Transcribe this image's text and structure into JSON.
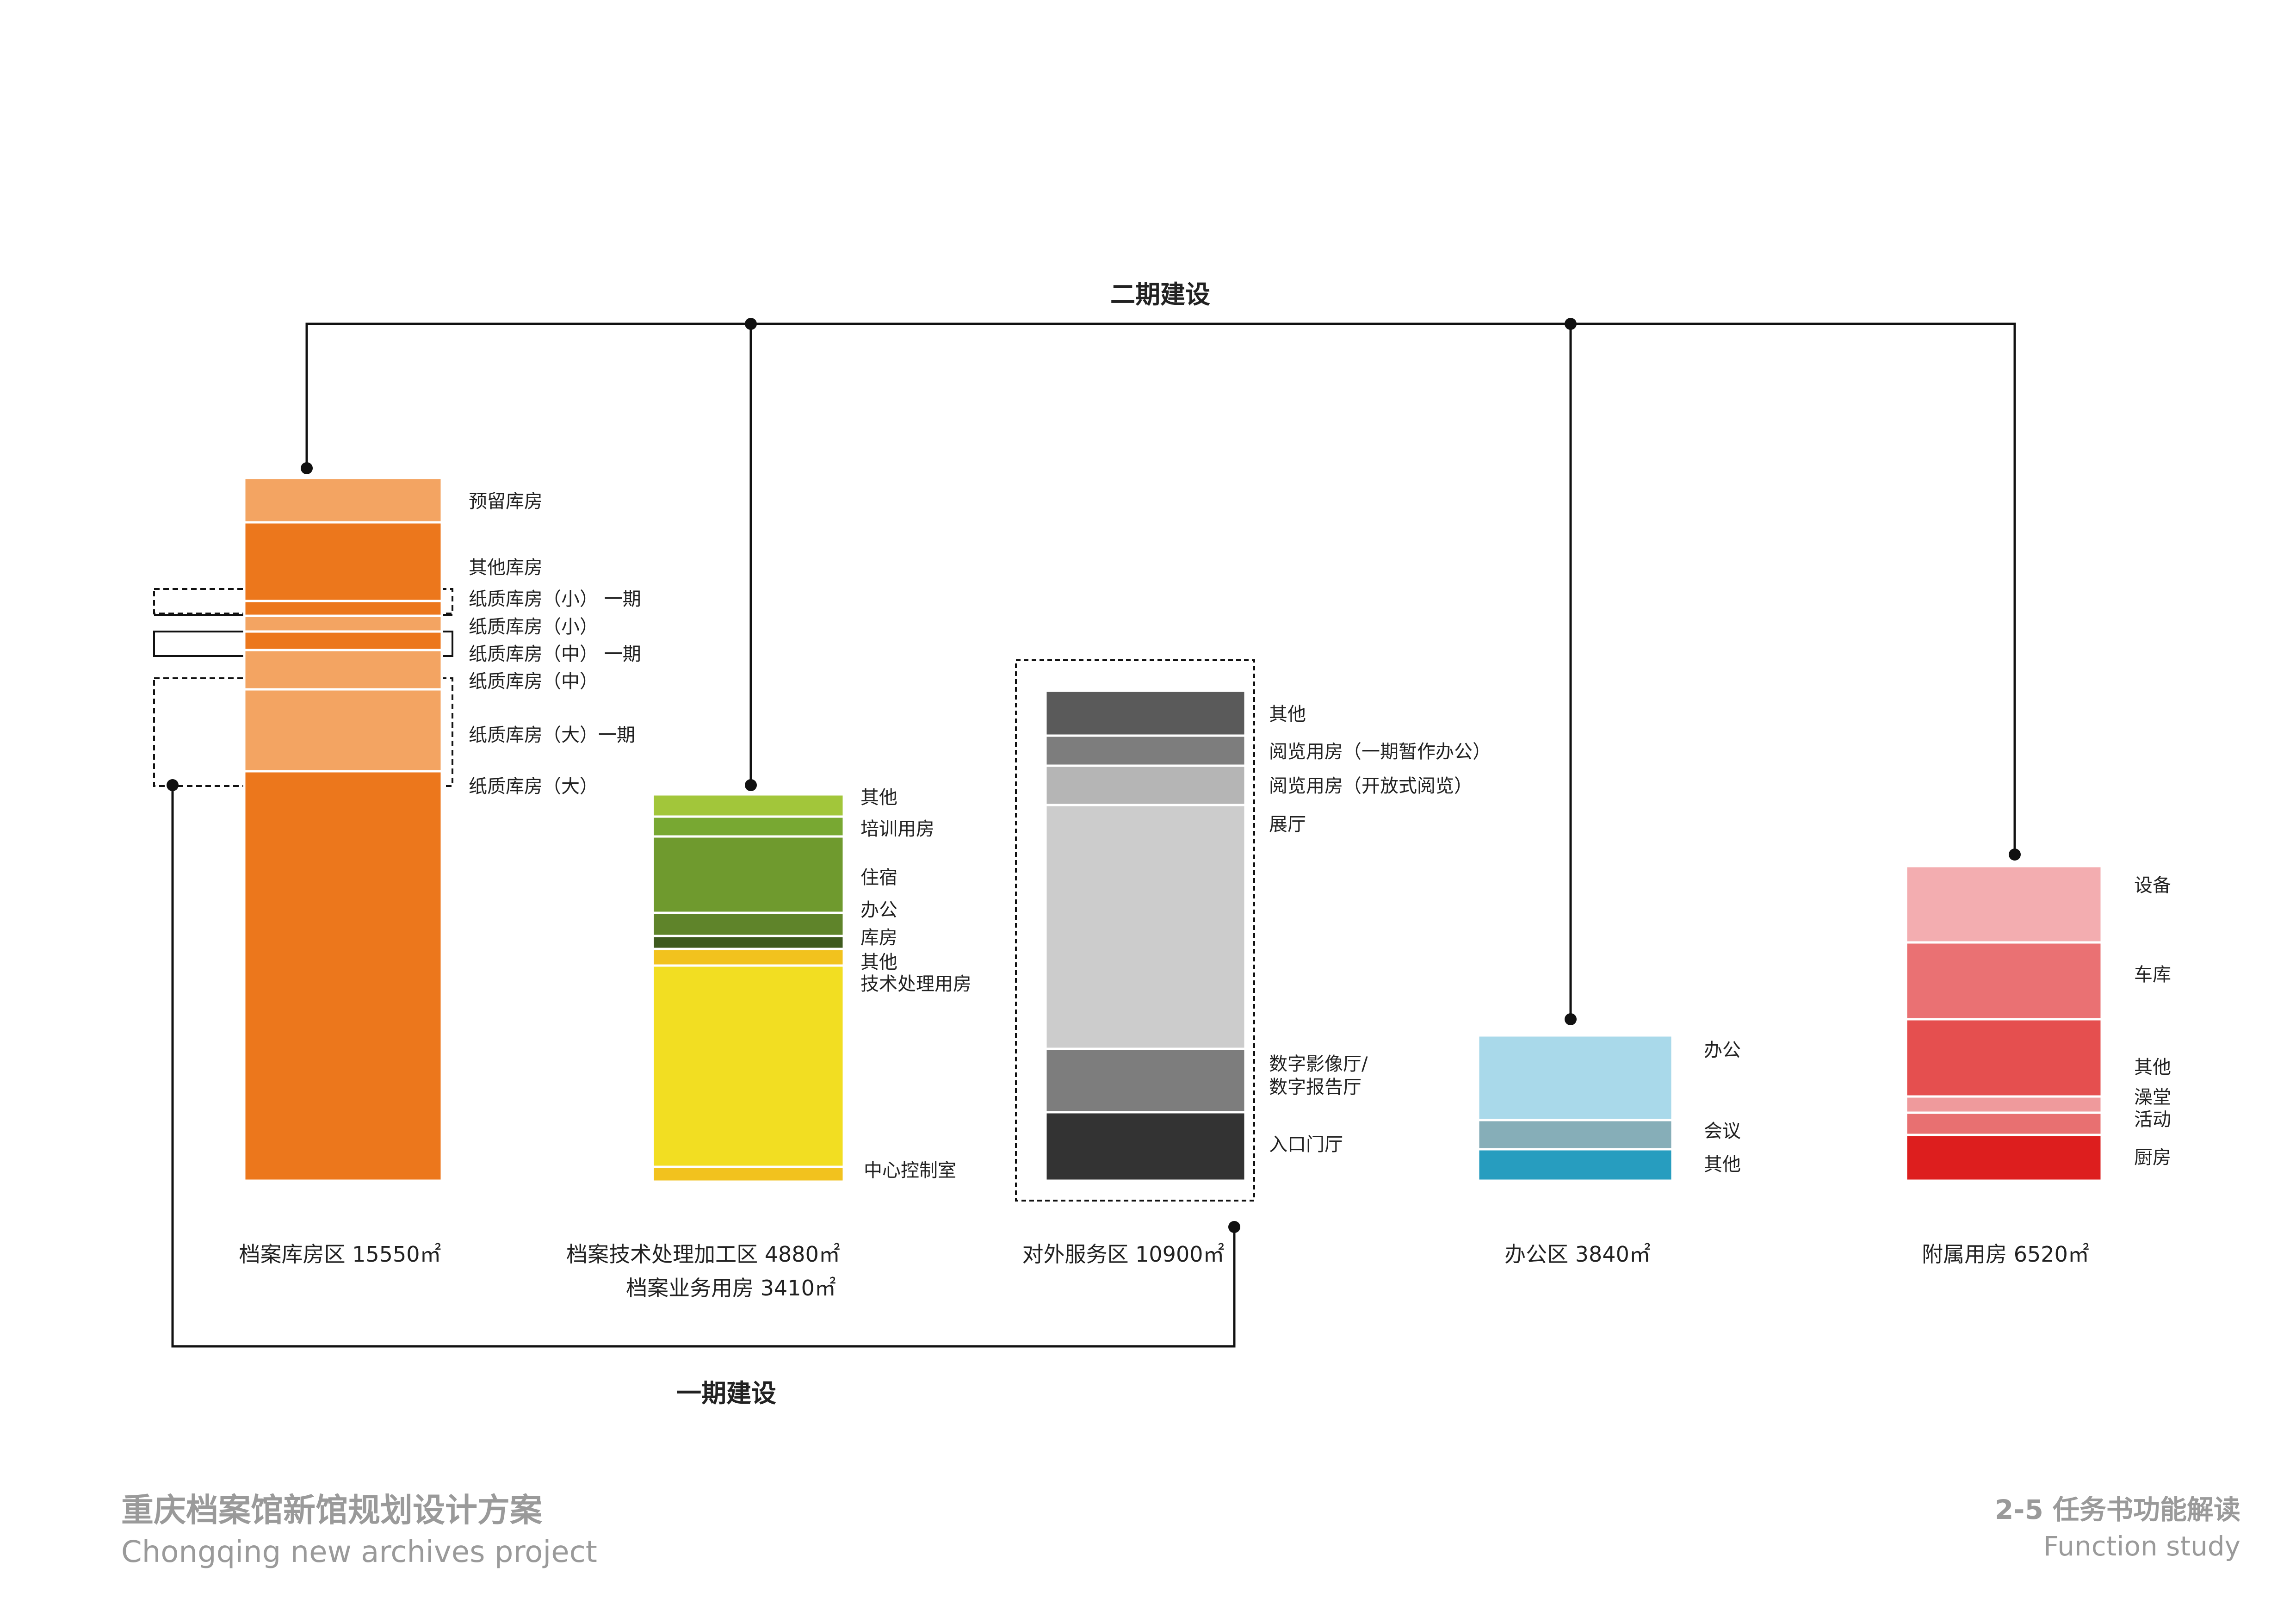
{
  "phase2_label": "二期建设",
  "phase1_label": "一期建设",
  "footer": {
    "project_title": "重庆档案馆新馆规划设计方案",
    "project_subtitle": "Chongqing  new archives project",
    "page_title": "2-5  任务书功能解读",
    "page_subtitle": "Function study"
  },
  "zones": [
    {
      "id": "archive-storage",
      "caption": "档案库房区  15550㎡",
      "caption2": "",
      "segments": [
        {
          "label": "预留库房",
          "color": "#f3a462"
        },
        {
          "label": "其他库房",
          "color": "#ec771c"
        },
        {
          "label": "纸质库房（小）  一期",
          "color": "#ec771c"
        },
        {
          "label": "纸质库房（小）",
          "color": "#f3a462"
        },
        {
          "label": "纸质库房（中）  一期",
          "color": "#ec771c"
        },
        {
          "label": "纸质库房（中）",
          "color": "#f3a462"
        },
        {
          "label": "纸质库房（大）一期",
          "color": "#f3a462"
        },
        {
          "label": "纸质库房（大）",
          "color": "#ec771c"
        }
      ]
    },
    {
      "id": "tech-processing",
      "caption": "档案技术处理加工区  4880㎡",
      "caption2": "档案业务用房  3410㎡",
      "segments": [
        {
          "label": "其他",
          "color": "#a2c63a"
        },
        {
          "label": "培训用房",
          "color": "#78a832"
        },
        {
          "label": "住宿",
          "color": "#6f9a2e"
        },
        {
          "label": "办公",
          "color": "#5f842a"
        },
        {
          "label": "库房",
          "color": "#3e5a1e"
        },
        {
          "label": "其他",
          "color": "#f2c21e"
        },
        {
          "label": "技术处理用房",
          "color": "#f2de22"
        },
        {
          "label": "中心控制室",
          "color": "#f2c21e"
        }
      ]
    },
    {
      "id": "public-service",
      "caption": "对外服务区  10900㎡",
      "caption2": "",
      "segments": [
        {
          "label": "其他",
          "color": "#5a5a5a"
        },
        {
          "label": "阅览用房（一期暂作办公）",
          "color": "#7d7d7d"
        },
        {
          "label": "阅览用房（开放式阅览）",
          "color": "#b5b5b5"
        },
        {
          "label": "展厅",
          "color": "#cccccc"
        },
        {
          "label": "数字影像厅/\n数字报告厅",
          "color": "#7d7d7d"
        },
        {
          "label": "入口门厅",
          "color": "#333333"
        }
      ]
    },
    {
      "id": "office",
      "caption": "办公区 3840㎡",
      "caption2": "",
      "segments": [
        {
          "label": "办公",
          "color": "#a9d9ea"
        },
        {
          "label": "会议",
          "color": "#86aeb8"
        },
        {
          "label": "其他",
          "color": "#279dbf"
        }
      ]
    },
    {
      "id": "auxiliary",
      "caption": "附属用房  6520㎡",
      "caption2": "",
      "segments": [
        {
          "label": "设备",
          "color": "#f3adb0"
        },
        {
          "label": "车库",
          "color": "#ea7173"
        },
        {
          "label": "其他",
          "color": "#e54f4f"
        },
        {
          "label": "澡堂",
          "color": "#ef9a9c"
        },
        {
          "label": "活动",
          "color": "#e87071"
        },
        {
          "label": "厨房",
          "color": "#dd1e1e"
        }
      ]
    }
  ]
}
